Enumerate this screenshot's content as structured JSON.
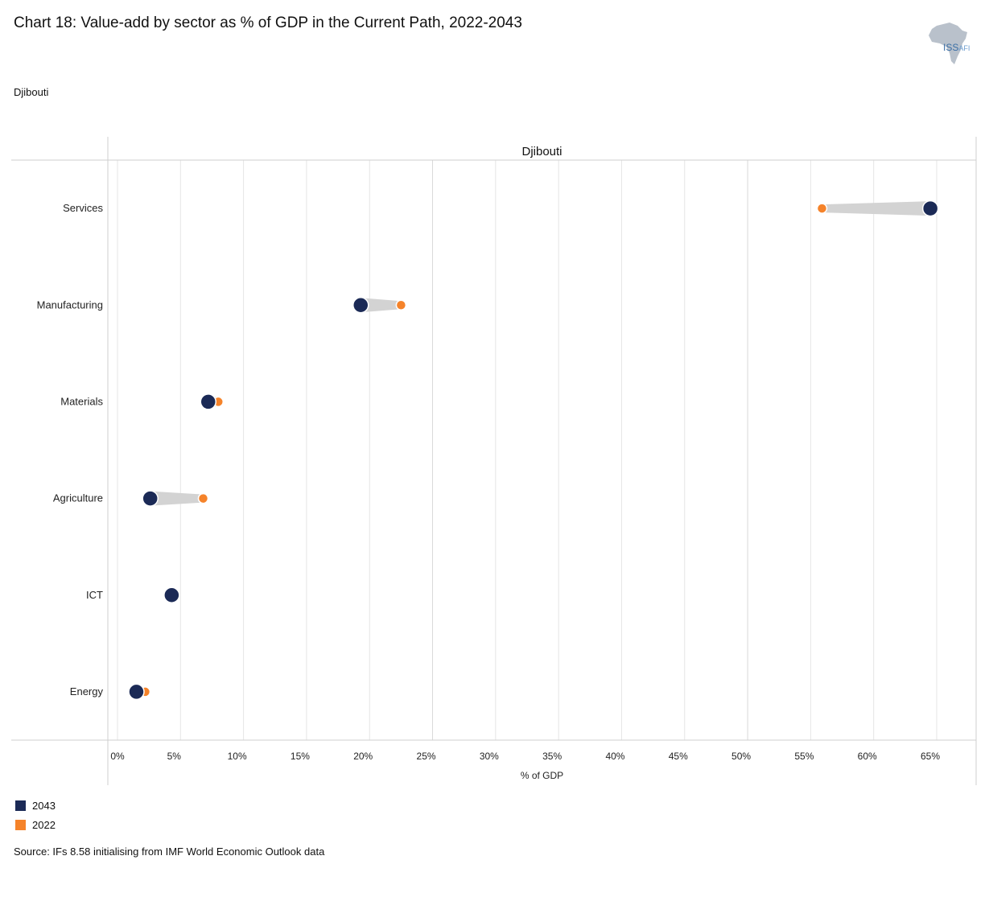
{
  "title": "Chart 18: Value-add by sector as % of GDP in the Current Path, 2022-2043",
  "subtitle": "Djibouti",
  "logo": {
    "name": "ISS AFI",
    "text_main": "ISS",
    "text_sub": "AFI",
    "icon": "africa-map-icon"
  },
  "source": "Source: IFs 8.58 initialising from IMF World Economic Outlook data",
  "colors": {
    "y2043": "#1b2a56",
    "y2022": "#f5832a",
    "connector": "#d3d3d3",
    "grid": "#e6e6e6"
  },
  "chart_data": {
    "type": "dumbbell",
    "panel_title": "Djibouti",
    "categories": [
      "Services",
      "Manufacturing",
      "Materials",
      "Agriculture",
      "ICT",
      "Energy"
    ],
    "series": [
      {
        "name": "2043",
        "values": [
          64.5,
          19.3,
          7.2,
          2.6,
          4.3,
          1.5
        ]
      },
      {
        "name": "2022",
        "values": [
          55.9,
          22.5,
          8.0,
          6.8,
          4.3,
          2.2
        ]
      }
    ],
    "xlabel": "% of GDP",
    "ylabel": "",
    "xlim": [
      0,
      68
    ],
    "x_ticks": [
      0,
      5,
      10,
      15,
      20,
      25,
      30,
      35,
      40,
      45,
      50,
      55,
      60,
      65
    ],
    "x_tick_labels": [
      "0%",
      "5%",
      "10%",
      "15%",
      "20%",
      "25%",
      "30%",
      "35%",
      "40%",
      "45%",
      "50%",
      "55%",
      "60%",
      "65%"
    ],
    "grid": true,
    "legend_position": "bottom-left"
  }
}
